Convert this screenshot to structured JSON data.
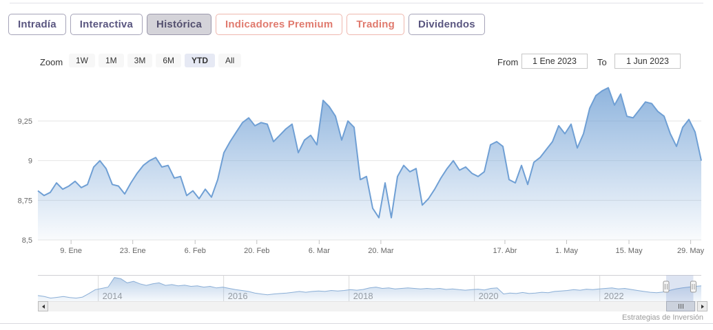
{
  "tabs": [
    {
      "id": "intradia",
      "label": "Intradía",
      "variant": "default",
      "selected": false
    },
    {
      "id": "interactiva",
      "label": "Interactiva",
      "variant": "default",
      "selected": false
    },
    {
      "id": "historica",
      "label": "Histórica",
      "variant": "default",
      "selected": true
    },
    {
      "id": "indicadores-premium",
      "label": "Indicadores Premium",
      "variant": "premium",
      "selected": false
    },
    {
      "id": "trading",
      "label": "Trading",
      "variant": "premium",
      "selected": false
    },
    {
      "id": "dividendos",
      "label": "Dividendos",
      "variant": "default",
      "selected": false
    }
  ],
  "toolbar": {
    "zoom_label": "Zoom",
    "ranges": [
      {
        "label": "1W",
        "selected": false
      },
      {
        "label": "1M",
        "selected": false
      },
      {
        "label": "3M",
        "selected": false
      },
      {
        "label": "6M",
        "selected": false
      },
      {
        "label": "YTD",
        "selected": true
      },
      {
        "label": "All",
        "selected": false
      }
    ],
    "from_label": "From",
    "from_value": "1 Ene 2023",
    "to_label": "To",
    "to_value": "1 Jun 2023"
  },
  "chart_data": [
    {
      "type": "area",
      "role": "main-price-chart",
      "title": "",
      "xlabel": "",
      "ylabel": "",
      "ylim": [
        8.5,
        9.48
      ],
      "grid": "horizontal",
      "legend": "none",
      "y_ticks": [
        {
          "value": 9.25,
          "label": "9,25"
        },
        {
          "value": 9.0,
          "label": "9"
        },
        {
          "value": 8.75,
          "label": "8,75"
        },
        {
          "value": 8.5,
          "label": "8,5"
        }
      ],
      "x_ticks": [
        {
          "pos": 0.05,
          "label": "9. Ene"
        },
        {
          "pos": 0.143,
          "label": "23. Ene"
        },
        {
          "pos": 0.237,
          "label": "6. Feb"
        },
        {
          "pos": 0.33,
          "label": "20. Feb"
        },
        {
          "pos": 0.424,
          "label": "6. Mar"
        },
        {
          "pos": 0.517,
          "label": "20. Mar"
        },
        {
          "pos": 0.704,
          "label": "17. Abr"
        },
        {
          "pos": 0.797,
          "label": "1. May"
        },
        {
          "pos": 0.891,
          "label": "15. May"
        },
        {
          "pos": 0.984,
          "label": "29. May"
        }
      ],
      "values": [
        8.81,
        8.78,
        8.8,
        8.86,
        8.82,
        8.84,
        8.87,
        8.83,
        8.85,
        8.96,
        9.0,
        8.95,
        8.85,
        8.84,
        8.79,
        8.86,
        8.92,
        8.97,
        9.0,
        9.02,
        8.96,
        8.97,
        8.89,
        8.9,
        8.78,
        8.81,
        8.76,
        8.82,
        8.77,
        8.88,
        9.05,
        9.12,
        9.18,
        9.24,
        9.27,
        9.22,
        9.24,
        9.23,
        9.12,
        9.16,
        9.2,
        9.23,
        9.05,
        9.13,
        9.16,
        9.1,
        9.38,
        9.34,
        9.28,
        9.13,
        9.25,
        9.21,
        8.88,
        8.9,
        8.7,
        8.64,
        8.86,
        8.64,
        8.9,
        8.97,
        8.93,
        8.95,
        8.72,
        8.76,
        8.82,
        8.89,
        8.95,
        9.0,
        8.94,
        8.96,
        8.92,
        8.9,
        8.93,
        9.1,
        9.12,
        9.09,
        8.88,
        8.86,
        8.97,
        8.85,
        8.99,
        9.02,
        9.07,
        9.12,
        9.22,
        9.17,
        9.23,
        9.08,
        9.17,
        9.33,
        9.41,
        9.44,
        9.46,
        9.35,
        9.42,
        9.28,
        9.27,
        9.32,
        9.37,
        9.36,
        9.31,
        9.28,
        9.17,
        9.09,
        9.21,
        9.26,
        9.18,
        9.0
      ]
    },
    {
      "type": "area",
      "role": "navigator",
      "x_ticks": [
        {
          "pos": 0.091,
          "label": "2014"
        },
        {
          "pos": 0.28,
          "label": "2016"
        },
        {
          "pos": 0.469,
          "label": "2018"
        },
        {
          "pos": 0.658,
          "label": "2020"
        },
        {
          "pos": 0.847,
          "label": "2022"
        }
      ],
      "values_normalized": [
        0.22,
        0.18,
        0.12,
        0.15,
        0.18,
        0.14,
        0.12,
        0.16,
        0.3,
        0.45,
        0.5,
        0.55,
        0.93,
        0.88,
        0.72,
        0.78,
        0.68,
        0.62,
        0.68,
        0.72,
        0.62,
        0.65,
        0.6,
        0.63,
        0.58,
        0.6,
        0.55,
        0.58,
        0.52,
        0.55,
        0.5,
        0.45,
        0.42,
        0.38,
        0.32,
        0.28,
        0.25,
        0.28,
        0.3,
        0.32,
        0.35,
        0.38,
        0.35,
        0.38,
        0.4,
        0.38,
        0.42,
        0.4,
        0.42,
        0.45,
        0.43,
        0.46,
        0.52,
        0.55,
        0.5,
        0.52,
        0.48,
        0.5,
        0.52,
        0.5,
        0.48,
        0.5,
        0.48,
        0.5,
        0.46,
        0.48,
        0.45,
        0.43,
        0.45,
        0.47,
        0.44,
        0.5,
        0.52,
        0.28,
        0.32,
        0.3,
        0.34,
        0.3,
        0.32,
        0.35,
        0.33,
        0.38,
        0.4,
        0.42,
        0.45,
        0.43,
        0.47,
        0.45,
        0.48,
        0.5,
        0.52,
        0.48,
        0.5,
        0.46,
        0.42,
        0.38,
        0.35,
        0.33,
        0.36,
        0.42,
        0.48,
        0.52,
        0.55,
        0.58,
        0.6
      ],
      "selected_range": {
        "from": 0.947,
        "to": 0.988
      }
    }
  ],
  "icons": {
    "scrollbar_left": "triangle-left",
    "scrollbar_right": "triangle-right",
    "scrollbar_grip": "three-rifles",
    "navigator_handle": "double-bar"
  },
  "watermark": "Estrategias de Inversión",
  "colors": {
    "series_line": "#6f9fd4",
    "series_fill_top": "rgba(111,159,212,0.78)",
    "series_fill_bottom": "rgba(111,159,212,0.04)",
    "nav_line": "#8aaed6",
    "nav_fill_top": "rgba(130,170,215,0.55)",
    "nav_fill_bottom": "rgba(130,170,215,0.08)",
    "grid": "#e6e6e6",
    "axis_label": "#666666",
    "nav_grid": "#d9d9d9",
    "nav_year_label": "#999999",
    "mask_inside": "rgba(102,133,194,0.22)",
    "tab_text": "#5a5680",
    "premium_text": "#e07a6e",
    "selected_range_bg": "#e6e9f4"
  }
}
